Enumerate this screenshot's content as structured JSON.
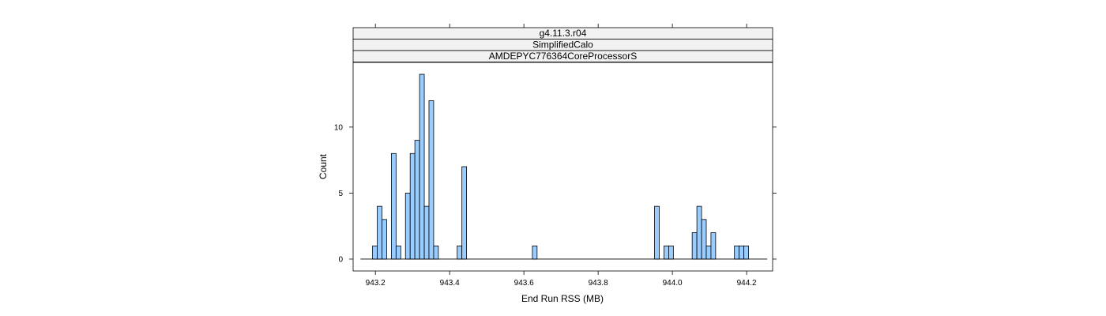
{
  "chart_data": {
    "type": "bar",
    "panel_strips": [
      "g4.11.3.r04",
      "SimplifiedCalo",
      "AMDEPYC776364CoreProcessorS"
    ],
    "xlabel": "End Run RSS (MB)",
    "ylabel": "Count",
    "xlim": [
      943.14,
      944.27
    ],
    "ylim": [
      -0.9,
      14.9
    ],
    "x_ticks": [
      943.2,
      943.4,
      943.6,
      943.8,
      944.0,
      944.2
    ],
    "x_tick_labels": [
      "943.2",
      "943.4",
      "943.6",
      "943.8",
      "944.0",
      "944.2"
    ],
    "y_ticks": [
      0,
      5,
      10
    ],
    "y_tick_labels": [
      "0",
      "5",
      "10"
    ],
    "bin_width": 0.01266,
    "range": [
      943.16,
      944.2555
    ],
    "bins": [
      {
        "x": 943.1987,
        "count": 1
      },
      {
        "x": 943.2113,
        "count": 4
      },
      {
        "x": 943.224,
        "count": 3
      },
      {
        "x": 943.2493,
        "count": 8
      },
      {
        "x": 943.262,
        "count": 1
      },
      {
        "x": 943.2873,
        "count": 5
      },
      {
        "x": 943.3,
        "count": 8
      },
      {
        "x": 943.3126,
        "count": 9
      },
      {
        "x": 943.3253,
        "count": 14
      },
      {
        "x": 943.338,
        "count": 4
      },
      {
        "x": 943.3506,
        "count": 12
      },
      {
        "x": 943.3633,
        "count": 1
      },
      {
        "x": 943.4266,
        "count": 1
      },
      {
        "x": 943.4393,
        "count": 7
      },
      {
        "x": 943.6292,
        "count": 1
      },
      {
        "x": 943.9583,
        "count": 4
      },
      {
        "x": 943.9836,
        "count": 1
      },
      {
        "x": 943.9963,
        "count": 1
      },
      {
        "x": 944.0596,
        "count": 2
      },
      {
        "x": 944.0723,
        "count": 4
      },
      {
        "x": 944.0849,
        "count": 3
      },
      {
        "x": 944.0976,
        "count": 1
      },
      {
        "x": 944.1102,
        "count": 2
      },
      {
        "x": 944.1735,
        "count": 1
      },
      {
        "x": 944.1862,
        "count": 1
      },
      {
        "x": 944.1989,
        "count": 1
      }
    ],
    "bar_fill": "#9ecae1",
    "bar_fill_alt": "#99ccff",
    "strip_fill": "#f2f2f2",
    "grid": false,
    "legend": "none"
  }
}
